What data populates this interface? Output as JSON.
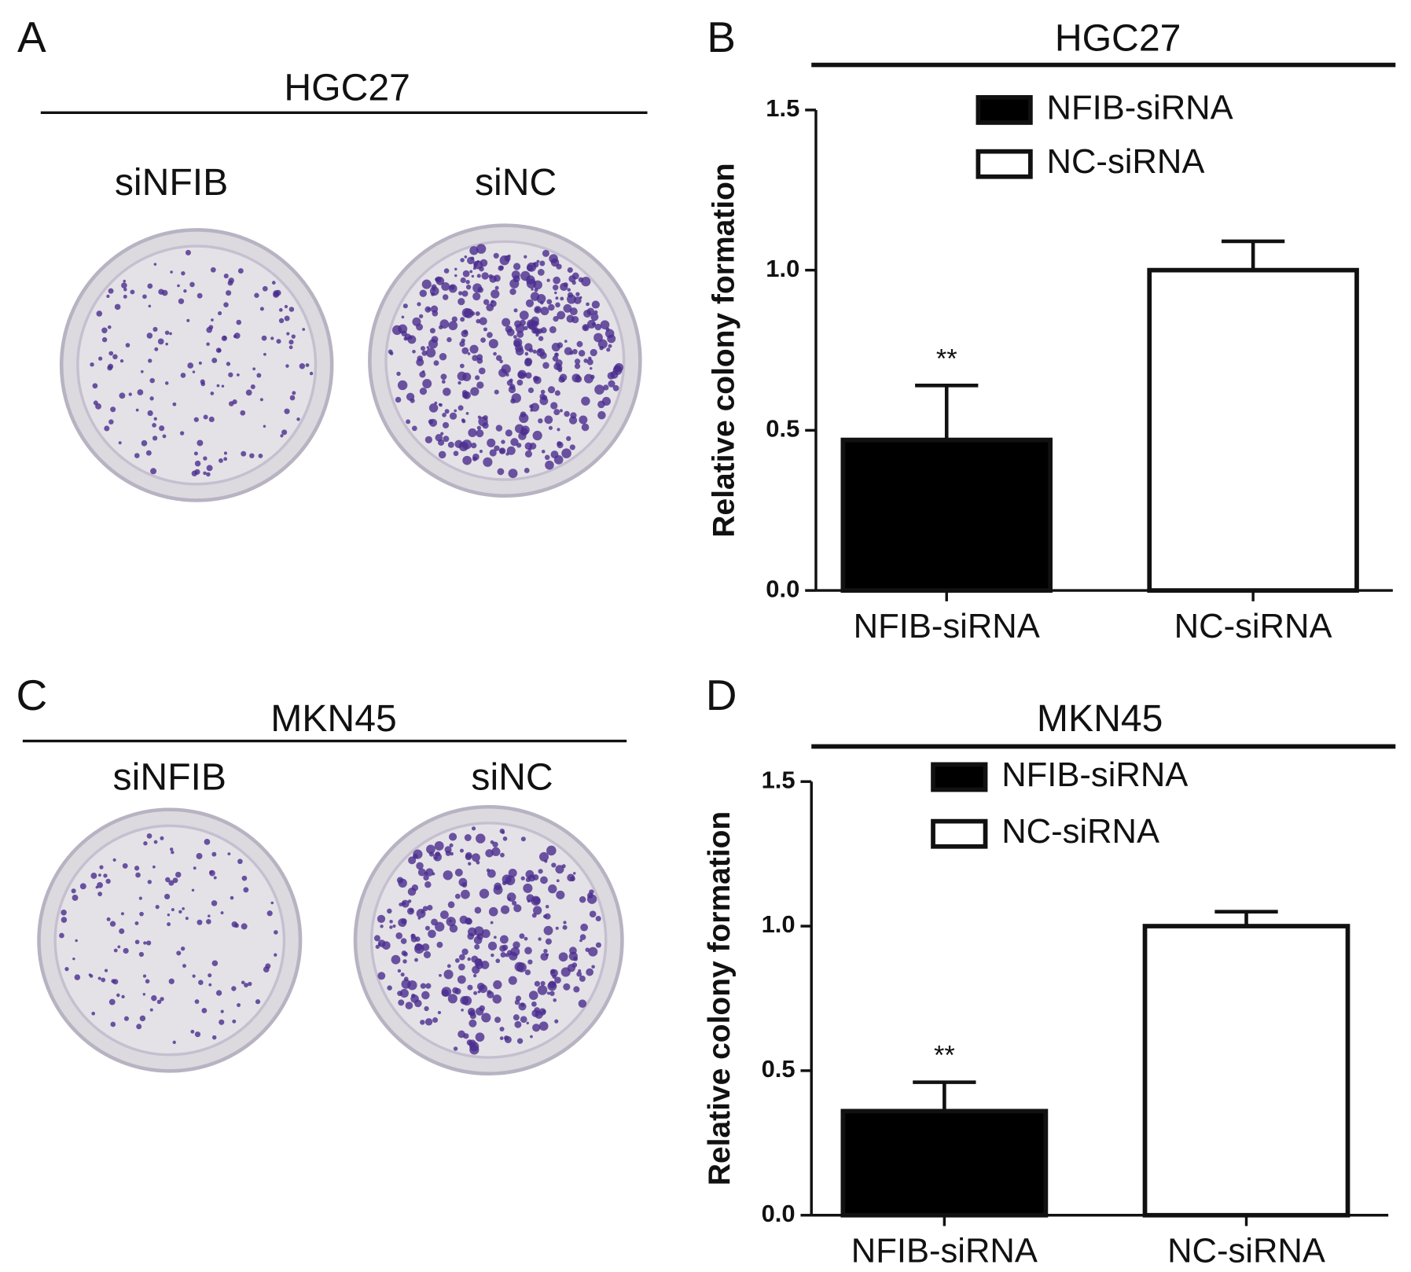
{
  "panels": [
    {
      "label": "A",
      "title": "HGC27",
      "samples": [
        "siNFIB",
        "siNC"
      ]
    },
    {
      "label": "C",
      "title": "MKN45",
      "samples": [
        "siNFIB",
        "siNC"
      ]
    }
  ],
  "chart_data": [
    {
      "type": "bar",
      "panel_label": "B",
      "title": "HGC27",
      "y_label": "Relative colony formation",
      "categories": [
        "NFIB-siRNA",
        "NC-siRNA"
      ],
      "series": [
        {
          "name": "NFIB-siRNA",
          "color": "#000000",
          "values": [
            0.47,
            null
          ],
          "errors": [
            0.17,
            null
          ]
        },
        {
          "name": "NC-siRNA",
          "color": "#ffffff",
          "values": [
            null,
            1.0
          ],
          "errors": [
            null,
            0.09
          ]
        }
      ],
      "significance": [
        "**",
        null
      ],
      "ylim": [
        0,
        1.5
      ],
      "yticks": [
        {
          "value": 0,
          "label": "0.0"
        },
        0.5,
        {
          "value": 1,
          "label": "1.0"
        },
        1.5
      ],
      "legend": "top-center"
    },
    {
      "type": "bar",
      "panel_label": "D",
      "title": "MKN45",
      "y_label": "Relative colony formation",
      "categories": [
        "NFIB-siRNA",
        "NC-siRNA"
      ],
      "series": [
        {
          "name": "NFIB-siRNA",
          "color": "#000000",
          "values": [
            0.36,
            null
          ],
          "errors": [
            0.1,
            null
          ]
        },
        {
          "name": "NC-siRNA",
          "color": "#ffffff",
          "values": [
            null,
            1.0
          ],
          "errors": [
            null,
            0.05
          ]
        }
      ],
      "significance": [
        "**",
        null
      ],
      "ylim": [
        0,
        1.5
      ],
      "yticks": [
        {
          "value": 0,
          "label": "0.0"
        },
        0.5,
        {
          "value": 1,
          "label": "1.0"
        },
        1.5
      ],
      "legend": "top-center"
    }
  ]
}
